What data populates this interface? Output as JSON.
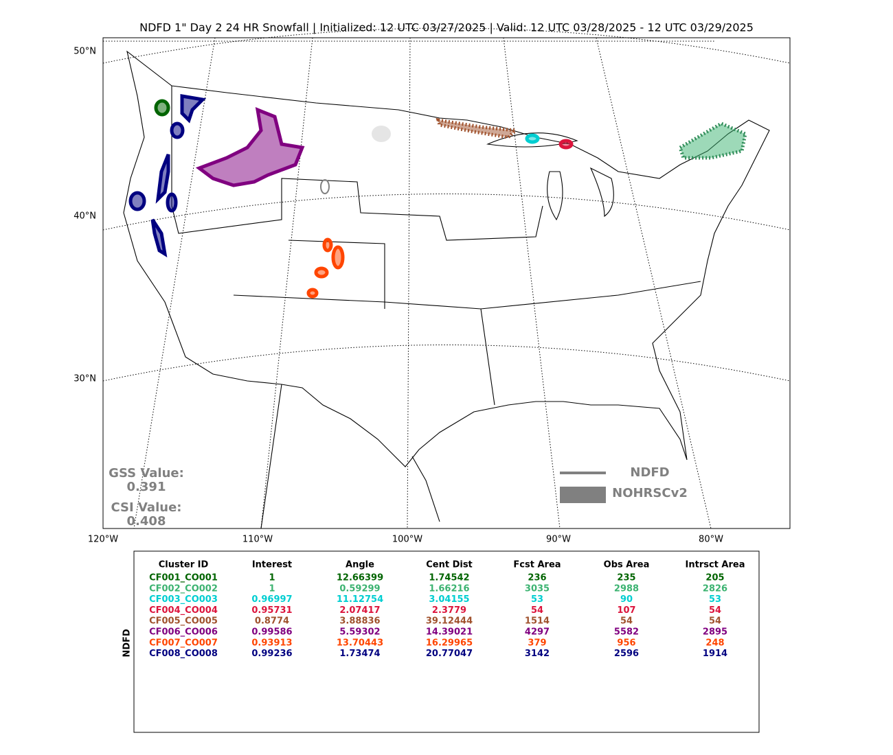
{
  "title": "NDFD 1\" Day 2 24 HR Snowfall | Initialized: 12 UTC 03/27/2025 | Valid: 12 UTC 03/28/2025 - 12 UTC 03/29/2025",
  "map": {
    "lat_labels": [
      "50°N",
      "40°N",
      "30°N"
    ],
    "lon_labels": [
      "120°W",
      "110°W",
      "100°W",
      "90°W",
      "80°W"
    ],
    "gss_label": "GSS Value:",
    "gss_value": 0.391,
    "csi_label": "CSI Value:",
    "csi_value": 0.408,
    "legend": [
      "NDFD",
      "NOHRSCv2"
    ]
  },
  "table": {
    "side_label": "NDFD",
    "columns": [
      "Cluster ID",
      "Interest",
      "Angle",
      "Cent Dist",
      "Fcst Area",
      "Obs Area",
      "Intrsct Area"
    ],
    "rows": [
      {
        "color": "#006400",
        "cells": [
          "CF001_CO001",
          1,
          12.66399,
          1.74542,
          236,
          235,
          205
        ]
      },
      {
        "color": "#3cb371",
        "cells": [
          "CF002_CO002",
          1,
          0.59299,
          1.66216,
          3035,
          2988,
          2826
        ]
      },
      {
        "color": "#00ced1",
        "cells": [
          "CF003_CO003",
          0.96997,
          11.12754,
          3.04155,
          53,
          90,
          53
        ]
      },
      {
        "color": "#dc143c",
        "cells": [
          "CF004_CO004",
          0.95731,
          2.07417,
          2.3779,
          54,
          107,
          54
        ]
      },
      {
        "color": "#a0522d",
        "cells": [
          "CF005_CO005",
          0.8774,
          3.88836,
          39.12444,
          1514,
          54,
          54
        ]
      },
      {
        "color": "#800080",
        "cells": [
          "CF006_CO006",
          0.99586,
          5.59302,
          14.39021,
          4297,
          5582,
          2895
        ]
      },
      {
        "color": "#ff4500",
        "cells": [
          "CF007_CO007",
          0.93913,
          13.70443,
          16.29965,
          379,
          956,
          248
        ]
      },
      {
        "color": "#000080",
        "cells": [
          "CF008_CO008",
          0.99236,
          1.73474,
          20.77047,
          3142,
          2596,
          1914
        ]
      }
    ]
  }
}
